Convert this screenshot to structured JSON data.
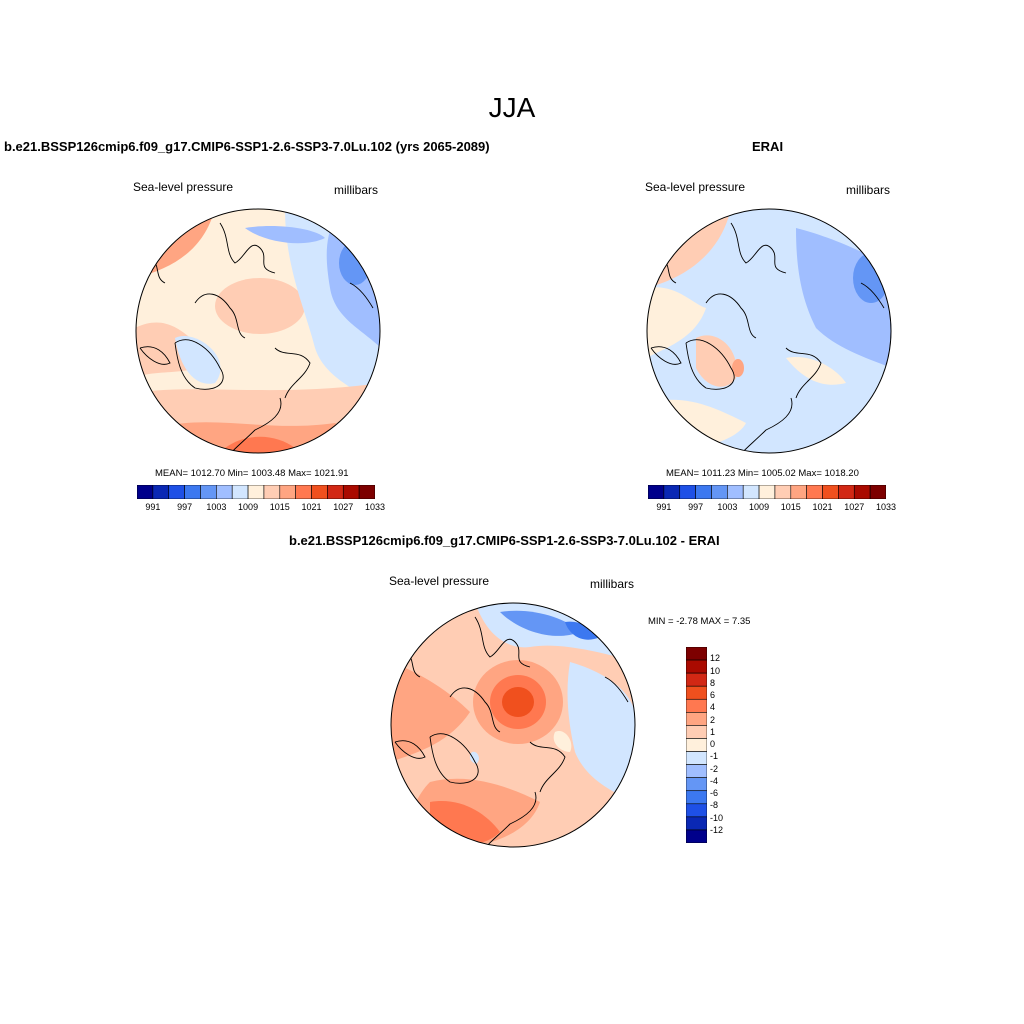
{
  "figure": {
    "title": "JJA"
  },
  "colors": {
    "scale": [
      "#00008b",
      "#0a28b4",
      "#1e50e6",
      "#3c78f0",
      "#6496f5",
      "#a0beff",
      "#d2e6ff",
      "#fff0dc",
      "#ffcdb4",
      "#ffa582",
      "#ff7850",
      "#f0501e",
      "#d22814",
      "#aa0a00",
      "#7d0000"
    ],
    "coast": "#000000"
  },
  "panels": [
    {
      "title": "b.e21.BSSP126cmip6.f09_g17.CMIP6-SSP1-2.6-SSP3-7.0Lu.102 (yrs 2065-2089)",
      "variable": "Sea-level pressure",
      "units": "millibars",
      "stats": "MEAN= 1012.70  Min= 1003.48  Max= 1021.91",
      "colorbar_ticks": [
        "991",
        "997",
        "1003",
        "1009",
        "1015",
        "1021",
        "1027",
        "1033"
      ]
    },
    {
      "title": "ERAI",
      "variable": "Sea-level pressure",
      "units": "millibars",
      "stats": "MEAN= 1011.23  Min= 1005.02  Max= 1018.20",
      "colorbar_ticks": [
        "991",
        "997",
        "1003",
        "1009",
        "1015",
        "1021",
        "1027",
        "1033"
      ]
    },
    {
      "title": "b.e21.BSSP126cmip6.f09_g17.CMIP6-SSP1-2.6-SSP3-7.0Lu.102 - ERAI",
      "variable": "Sea-level pressure",
      "units": "millibars",
      "stats": "MIN =  -2.78 MAX =   7.35",
      "colorbar_ticks": [
        "12",
        "10",
        "8",
        "6",
        "4",
        "2",
        "1",
        "0",
        "-1",
        "-2",
        "-4",
        "-6",
        "-8",
        "-10",
        "-12"
      ]
    }
  ]
}
